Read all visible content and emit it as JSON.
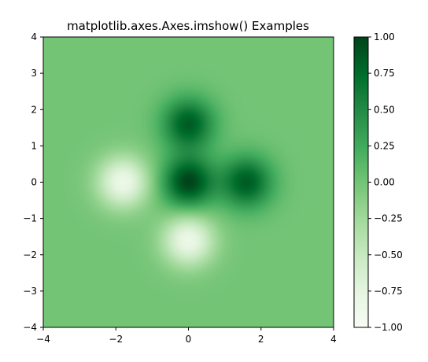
{
  "chart_data": {
    "type": "heatmap",
    "title": "matplotlib.axes.Axes.imshow() Examples",
    "xlim": [
      -4,
      4
    ],
    "ylim": [
      -4,
      4
    ],
    "x_ticks": [
      -4,
      -2,
      0,
      2,
      4
    ],
    "y_ticks": [
      -4,
      -3,
      -2,
      -1,
      0,
      1,
      2,
      3,
      4
    ],
    "x_tick_labels": [
      "−4",
      "−2",
      "0",
      "2",
      "4"
    ],
    "y_tick_labels": [
      "−4",
      "−3",
      "−2",
      "−1",
      "0",
      "1",
      "2",
      "3",
      "4"
    ],
    "colormap": "Greens",
    "colorbar": {
      "vmin": -1.0,
      "vmax": 1.0,
      "ticks": [
        -1.0,
        -0.75,
        -0.5,
        -0.25,
        0.0,
        0.25,
        0.5,
        0.75,
        1.0
      ],
      "tick_labels": [
        "−1.00",
        "−0.75",
        "−0.50",
        "−0.25",
        "0.00",
        "0.25",
        "0.50",
        "0.75",
        "1.00"
      ]
    },
    "features": [
      {
        "x": 0.0,
        "y": 0.0,
        "value": 1.0
      },
      {
        "x": 0.0,
        "y": 1.6,
        "value": 0.85
      },
      {
        "x": 1.6,
        "y": 0.0,
        "value": 0.85
      },
      {
        "x": -1.8,
        "y": 0.0,
        "value": -0.85
      },
      {
        "x": 0.0,
        "y": -1.6,
        "value": -0.85
      }
    ],
    "grid": false
  }
}
